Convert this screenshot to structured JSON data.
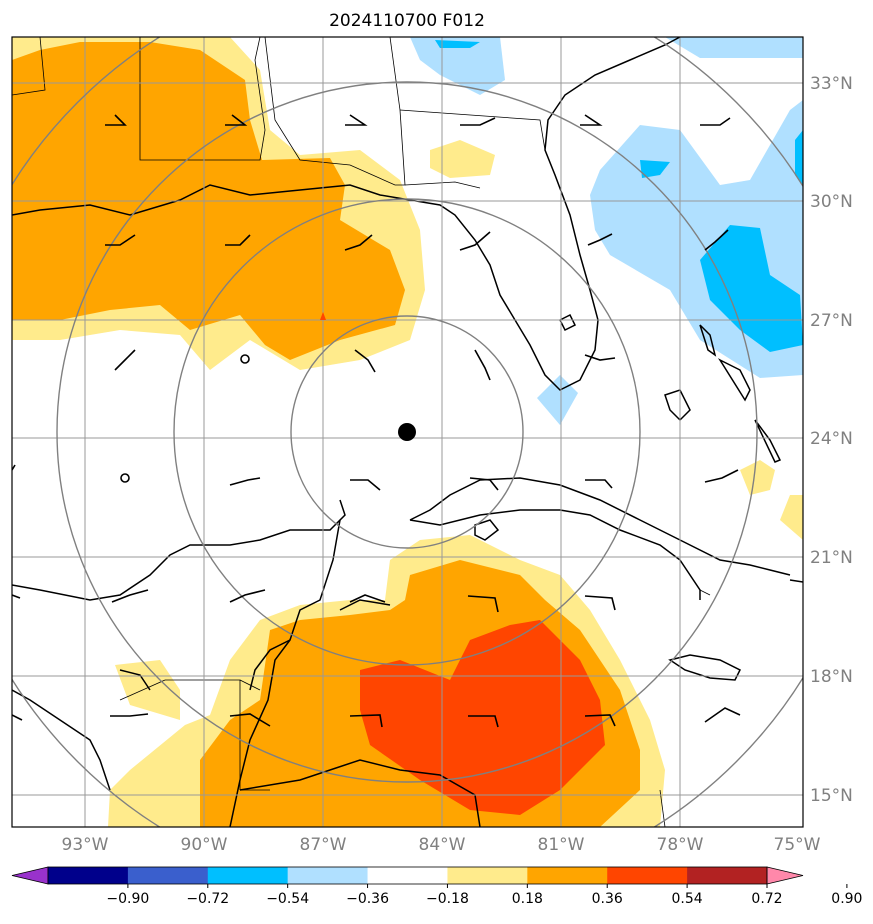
{
  "title": "2024110700 F012",
  "lon_labels": [
    "93°W",
    "90°W",
    "87°W",
    "84°W",
    "81°W",
    "78°W",
    "75°W"
  ],
  "lat_labels": [
    "33°N",
    "30°N",
    "27°N",
    "24°N",
    "21°N",
    "18°N",
    "15°N"
  ],
  "colorbar": {
    "tick_labels": [
      "−0.90",
      "−0.72",
      "−0.54",
      "−0.36",
      "−0.18",
      "0.18",
      "0.36",
      "0.54",
      "0.72",
      "0.90"
    ],
    "colors": [
      "#9932CC",
      "#00008B",
      "#3A5FCD",
      "#00BFFF",
      "#B0E0FF",
      "#FFFFFF",
      "#FFEB8C",
      "#FFA500",
      "#FF4500",
      "#B22222",
      "#FF88AA"
    ]
  },
  "colors": {
    "level_pos1": "#FFEB8C",
    "level_pos2": "#FFA500",
    "level_pos3": "#FF4500",
    "level_neg1": "#B0E0FF",
    "level_neg2": "#00BFFF",
    "grid": "#999999",
    "range_rings": "#808080"
  },
  "map": {
    "projection": "lat-lon",
    "lon_range": [
      "95°W",
      "75°W"
    ],
    "lat_range": [
      "14°N",
      "34°N"
    ],
    "center_marker": "storm-center-dot",
    "range_rings": 4
  }
}
